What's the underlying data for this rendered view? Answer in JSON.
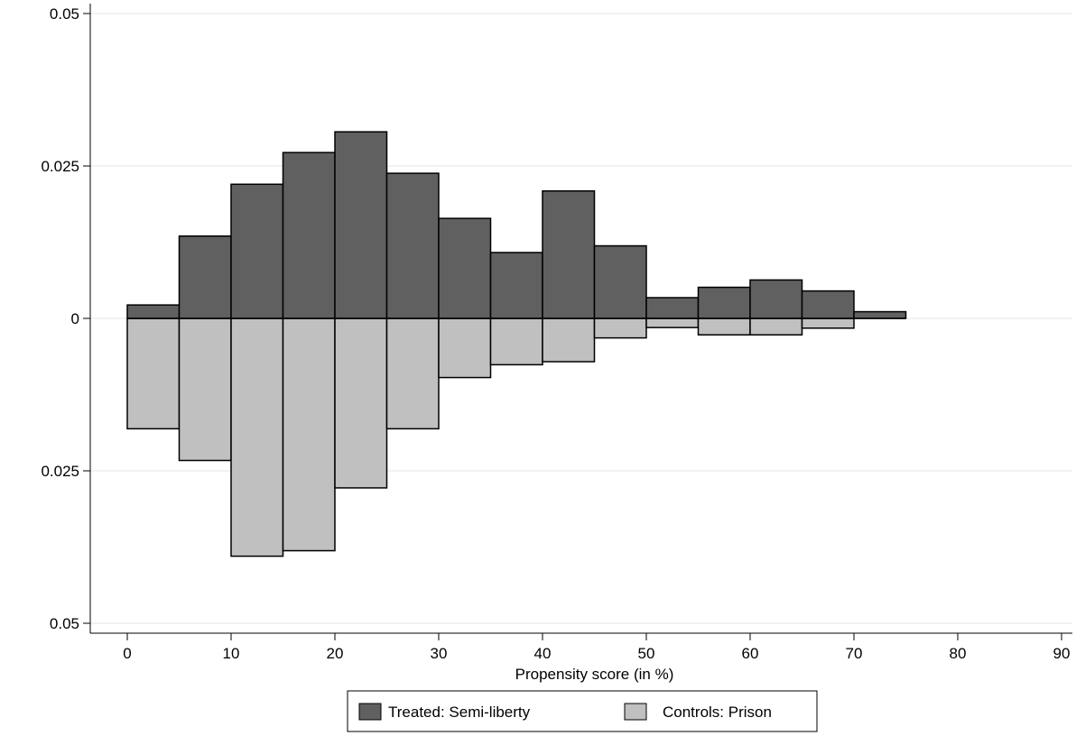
{
  "chart_data": {
    "type": "bar",
    "subtype": "mirrored-histogram",
    "title": "",
    "xlabel": "Propensity score (in %)",
    "ylabel": "",
    "xlim": [
      0,
      90
    ],
    "ylim": [
      -0.05,
      0.05
    ],
    "bin_width": 5,
    "grid": true,
    "legend_position": "bottom",
    "x_ticks": [
      {
        "value": 0,
        "label": "0"
      },
      {
        "value": 10,
        "label": "10"
      },
      {
        "value": 20,
        "label": "20"
      },
      {
        "value": 30,
        "label": "30"
      },
      {
        "value": 40,
        "label": "40"
      },
      {
        "value": 50,
        "label": "50"
      },
      {
        "value": 60,
        "label": "60"
      },
      {
        "value": 70,
        "label": "70"
      },
      {
        "value": 80,
        "label": "80"
      },
      {
        "value": 90,
        "label": "90"
      }
    ],
    "y_ticks": [
      {
        "value": 0.05,
        "label": "0.05"
      },
      {
        "value": 0.025,
        "label": "0.025"
      },
      {
        "value": 0,
        "label": "0"
      },
      {
        "value": -0.025,
        "label": "0.025"
      },
      {
        "value": -0.05,
        "label": "0.05"
      }
    ],
    "series": [
      {
        "name": "Treated: Semi-liberty",
        "direction": "up",
        "color": "#606060",
        "bins": [
          0,
          5,
          10,
          15,
          20,
          25,
          30,
          35,
          40,
          45,
          50,
          55,
          60,
          65,
          70
        ],
        "values": [
          0.0022,
          0.0135,
          0.022,
          0.0272,
          0.0306,
          0.0238,
          0.0164,
          0.0108,
          0.0209,
          0.0119,
          0.0034,
          0.0051,
          0.0063,
          0.0045,
          0.0011
        ]
      },
      {
        "name": "Controls: Prison",
        "direction": "down",
        "color": "#c0c0c0",
        "bins": [
          0,
          5,
          10,
          15,
          20,
          25,
          30,
          35,
          40,
          45,
          50,
          55,
          60,
          65
        ],
        "values": [
          0.0181,
          0.0233,
          0.039,
          0.0381,
          0.0278,
          0.0181,
          0.0097,
          0.0076,
          0.0071,
          0.0032,
          0.0015,
          0.0027,
          0.0027,
          0.0016
        ]
      }
    ]
  }
}
